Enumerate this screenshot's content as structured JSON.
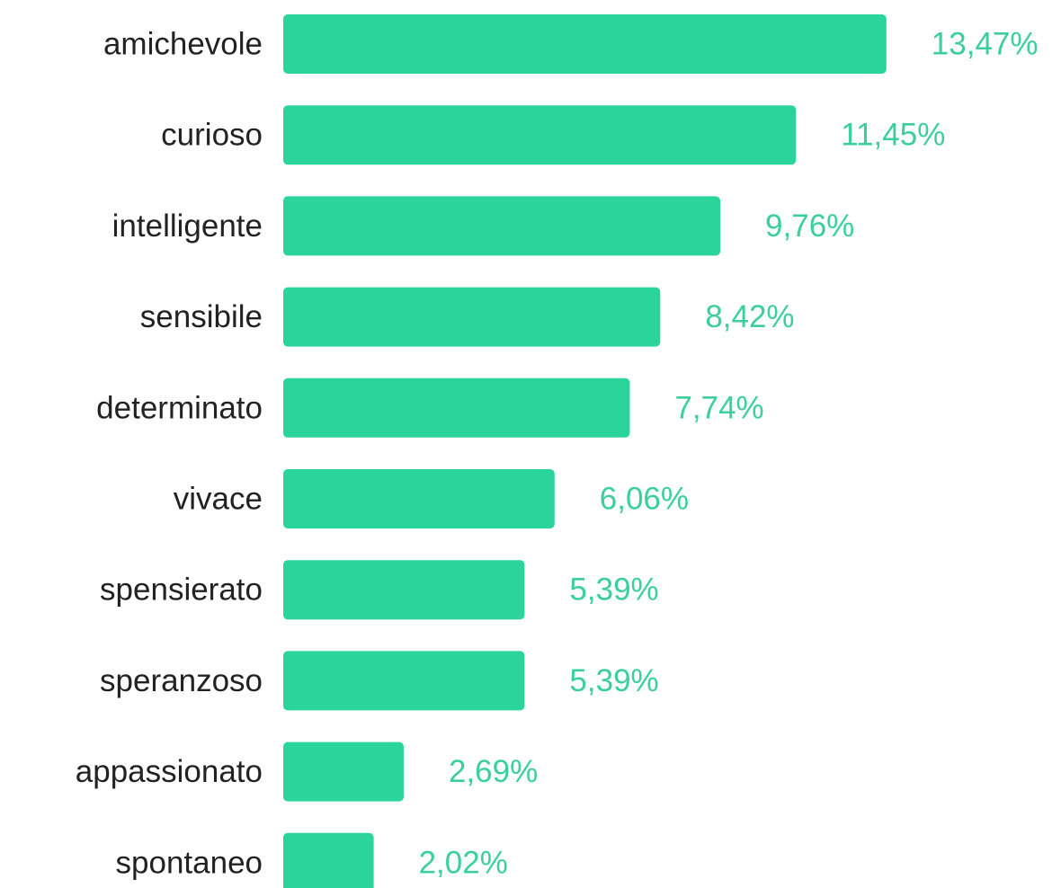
{
  "chart_data": {
    "type": "bar",
    "orientation": "horizontal",
    "categories": [
      "amichevole",
      "curioso",
      "intelligente",
      "sensibile",
      "determinato",
      "vivace",
      "spensierato",
      "speranzoso",
      "appassionato",
      "spontaneo"
    ],
    "values": [
      13.47,
      11.45,
      9.76,
      8.42,
      7.74,
      6.06,
      5.39,
      5.39,
      2.69,
      2.02
    ],
    "value_labels": [
      "13,47%",
      "11,45%",
      "9,76%",
      "8,42%",
      "7,74%",
      "6,06%",
      "5,39%",
      "5,39%",
      "2,69%",
      "2,02%"
    ],
    "unit": "%",
    "title": "",
    "xlabel": "",
    "ylabel": "",
    "grid": false,
    "legend": "none"
  },
  "colors": {
    "bar": "#2AD49A",
    "value_label": "#3BCF9C",
    "category_label": "#222222",
    "background": "#FFFFFF"
  }
}
